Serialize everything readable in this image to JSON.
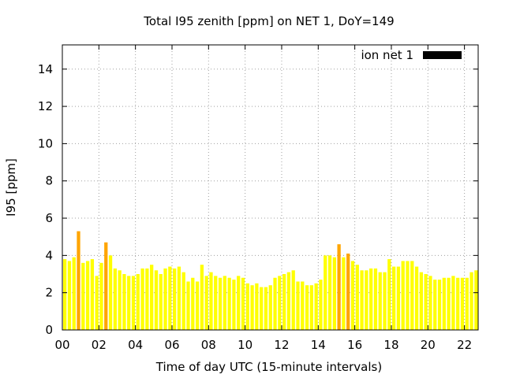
{
  "chart_data": {
    "type": "bar",
    "title": "Total I95 zenith [ppm] on NET 1, DoY=149",
    "xlabel": "Time of day UTC (15-minute intervals)",
    "ylabel": "I95 [ppm]",
    "xlim": [
      0,
      22.75
    ],
    "ylim": [
      0,
      15.3
    ],
    "x_ticks": [
      0,
      2,
      4,
      6,
      8,
      10,
      12,
      14,
      16,
      18,
      20,
      22
    ],
    "x_tick_labels": [
      "00",
      "02",
      "04",
      "06",
      "08",
      "10",
      "12",
      "14",
      "16",
      "18",
      "20",
      "22"
    ],
    "y_ticks": [
      0,
      2,
      4,
      6,
      8,
      10,
      12,
      14
    ],
    "y_tick_labels": [
      "0",
      "2",
      "4",
      "6",
      "8",
      "10",
      "12",
      "14"
    ],
    "grid": true,
    "legend_position": "top-right",
    "bar_interval_hours": 0.25,
    "colors": {
      "normal": "#ffff00",
      "high": "#ffa500",
      "axis": "#000000",
      "grid": "#a0a0a0",
      "legend": "#000000"
    },
    "series": [
      {
        "name": "ion net 1",
        "x": [
          0.0,
          0.25,
          0.5,
          0.75,
          1.0,
          1.25,
          1.5,
          1.75,
          2.0,
          2.25,
          2.5,
          2.75,
          3.0,
          3.25,
          3.5,
          3.75,
          4.0,
          4.25,
          4.5,
          4.75,
          5.0,
          5.25,
          5.5,
          5.75,
          6.0,
          6.25,
          6.5,
          6.75,
          7.0,
          7.25,
          7.5,
          7.75,
          8.0,
          8.25,
          8.5,
          8.75,
          9.0,
          9.25,
          9.5,
          9.75,
          10.0,
          10.25,
          10.5,
          10.75,
          11.0,
          11.25,
          11.5,
          11.75,
          12.0,
          12.25,
          12.5,
          12.75,
          13.0,
          13.25,
          13.5,
          13.75,
          14.0,
          14.25,
          14.5,
          14.75,
          15.0,
          15.25,
          15.5,
          15.75,
          16.0,
          16.25,
          16.5,
          16.75,
          17.0,
          17.25,
          17.5,
          17.75,
          18.0,
          18.25,
          18.5,
          18.75,
          19.0,
          19.25,
          19.5,
          19.75,
          20.0,
          20.25,
          20.5,
          20.75,
          21.0,
          21.25,
          21.5,
          21.75,
          22.0,
          22.25,
          22.5
        ],
        "values": [
          3.8,
          3.7,
          3.9,
          5.3,
          3.6,
          3.7,
          3.8,
          2.9,
          3.6,
          4.7,
          4.0,
          3.3,
          3.2,
          3.0,
          2.9,
          2.9,
          3.0,
          3.3,
          3.3,
          3.5,
          3.2,
          3.0,
          3.3,
          3.4,
          3.3,
          3.4,
          3.1,
          2.6,
          2.8,
          2.6,
          3.5,
          2.9,
          3.1,
          2.9,
          2.8,
          2.9,
          2.8,
          2.7,
          2.9,
          2.8,
          2.5,
          2.4,
          2.5,
          2.3,
          2.3,
          2.4,
          2.8,
          2.9,
          3.0,
          3.1,
          3.2,
          2.6,
          2.6,
          2.4,
          2.4,
          2.5,
          2.7,
          4.0,
          4.0,
          3.9,
          4.6,
          3.9,
          4.1,
          3.7,
          3.5,
          3.2,
          3.2,
          3.3,
          3.3,
          3.1,
          3.1,
          3.8,
          3.4,
          3.4,
          3.7,
          3.7,
          3.7,
          3.4,
          3.1,
          3.0,
          2.9,
          2.7,
          2.7,
          2.8,
          2.8,
          2.9,
          2.8,
          2.8,
          2.8,
          3.1,
          3.2
        ],
        "highlight_threshold": 4.05
      }
    ]
  }
}
